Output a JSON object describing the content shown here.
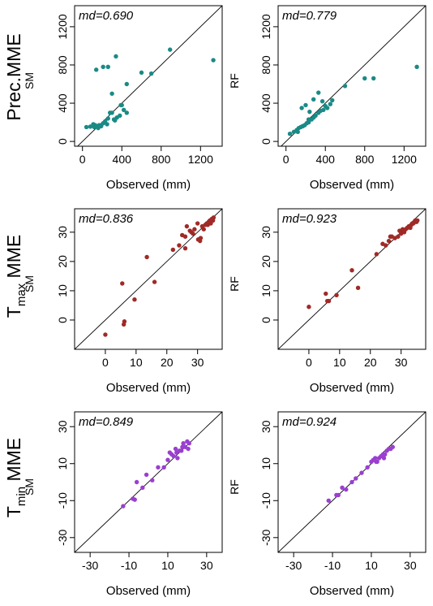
{
  "colors": {
    "row1": "#1a8a86",
    "row2": "#a02a26",
    "row3": "#9a3fd0",
    "frame": "#000000",
    "diagonal": "#000000"
  },
  "rows": [
    {
      "title_main": "Prec.MME",
      "title_sub": "",
      "model_label_left": "SM",
      "model_label_right": "RF"
    },
    {
      "title_main": "T",
      "title_sub": "max",
      "title_suffix": " MME",
      "model_label_left": "SM",
      "model_label_right": "RF"
    },
    {
      "title_main": "T",
      "title_sub": "min",
      "title_suffix": " MME",
      "model_label_left": "SM",
      "model_label_right": "RF"
    }
  ],
  "chart_data": [
    {
      "type": "scatter",
      "row": 0,
      "col": 0,
      "md_label": "md=0.690",
      "xlabel": "Observed (mm)",
      "ylabel": "SM",
      "xlim": [
        -80,
        1420
      ],
      "ylim": [
        -50,
        1420
      ],
      "xticks": [
        0,
        400,
        800,
        1200
      ],
      "yticks": [
        0,
        400,
        800,
        1200
      ],
      "x": [
        40,
        80,
        110,
        130,
        150,
        170,
        190,
        210,
        230,
        260,
        280,
        300,
        330,
        350,
        380,
        400,
        420,
        450,
        120,
        160,
        210,
        260,
        300,
        340,
        390,
        450,
        600,
        700,
        890,
        1330,
        140,
        180,
        250,
        320
      ],
      "y": [
        150,
        155,
        180,
        170,
        150,
        170,
        160,
        190,
        210,
        240,
        300,
        300,
        220,
        250,
        270,
        380,
        330,
        300,
        150,
        140,
        780,
        780,
        500,
        890,
        380,
        600,
        720,
        710,
        960,
        850,
        750,
        160,
        180,
        230
      ]
    },
    {
      "type": "scatter",
      "row": 0,
      "col": 1,
      "md_label": "md=0.779",
      "xlabel": "Observed (mm)",
      "ylabel": "RF",
      "xlim": [
        -80,
        1420
      ],
      "ylim": [
        -50,
        1420
      ],
      "xticks": [
        0,
        400,
        800,
        1200
      ],
      "yticks": [
        0,
        400,
        800,
        1200
      ],
      "x": [
        40,
        80,
        110,
        130,
        150,
        170,
        190,
        210,
        230,
        260,
        280,
        300,
        330,
        350,
        380,
        400,
        420,
        450,
        120,
        170,
        200,
        240,
        280,
        330,
        370,
        470,
        600,
        800,
        890,
        1330,
        160,
        230
      ],
      "y": [
        80,
        100,
        120,
        140,
        150,
        160,
        170,
        190,
        200,
        230,
        250,
        270,
        300,
        320,
        330,
        370,
        350,
        390,
        100,
        160,
        380,
        310,
        440,
        510,
        420,
        430,
        580,
        660,
        660,
        780,
        350,
        230
      ]
    },
    {
      "type": "scatter",
      "row": 1,
      "col": 0,
      "md_label": "md=0.836",
      "xlabel": "Observed (mm)",
      "ylabel": "SM",
      "xlim": [
        -10,
        38
      ],
      "ylim": [
        -10,
        38
      ],
      "xticks": [
        0,
        10,
        20,
        30
      ],
      "yticks": [
        0,
        10,
        20,
        30
      ],
      "x": [
        0,
        5.5,
        6,
        6.2,
        9.5,
        13.5,
        16,
        22,
        24,
        25,
        26,
        26.5,
        27.5,
        28,
        29,
        30,
        30.2,
        30.5,
        31,
        31.5,
        32,
        32.5,
        33,
        33.3,
        33.6,
        34,
        34.3,
        34.6,
        35,
        35.2,
        26,
        28.5,
        30.8
      ],
      "y": [
        -5,
        12.5,
        -1.5,
        -0.5,
        7,
        21.5,
        13,
        24,
        25.5,
        29,
        28.5,
        32,
        30.5,
        30,
        31,
        33,
        27.5,
        27.5,
        28,
        32,
        31,
        32.5,
        33,
        32.5,
        33.5,
        34,
        33,
        34.5,
        34,
        35,
        24.5,
        29.5,
        27
      ]
    },
    {
      "type": "scatter",
      "row": 1,
      "col": 1,
      "md_label": "md=0.923",
      "xlabel": "Observed (mm)",
      "ylabel": "RF",
      "xlim": [
        -10,
        38
      ],
      "ylim": [
        -10,
        38
      ],
      "xticks": [
        0,
        10,
        20,
        30
      ],
      "yticks": [
        0,
        10,
        20,
        30
      ],
      "x": [
        0,
        5.5,
        6,
        6.5,
        9,
        14,
        16,
        22,
        24,
        25,
        26,
        27,
        28,
        29,
        30,
        30.5,
        31,
        31.5,
        32,
        32.5,
        33,
        33.3,
        33.6,
        34,
        34.3,
        34.6,
        35,
        35.3,
        26.5,
        29.5
      ],
      "y": [
        4.5,
        9,
        6.5,
        6.5,
        8.5,
        17,
        11,
        22.5,
        26,
        25.5,
        27,
        28.5,
        28,
        28.5,
        29.5,
        31,
        30,
        31,
        31.5,
        32,
        31.5,
        32.5,
        33,
        33,
        33.5,
        34,
        33.5,
        34,
        28.5,
        30.5
      ]
    },
    {
      "type": "scatter",
      "row": 2,
      "col": 0,
      "md_label": "md=0.849",
      "xlabel": "Observed (mm)",
      "ylabel": "SM",
      "xlim": [
        -38,
        38
      ],
      "ylim": [
        -38,
        38
      ],
      "xticks": [
        -30,
        -10,
        10,
        30
      ],
      "yticks": [
        -30,
        -10,
        10,
        30
      ],
      "x": [
        -13,
        -8,
        -7,
        -6,
        -3,
        -1,
        2,
        5,
        8,
        10,
        11,
        12,
        13,
        14,
        15,
        16,
        17,
        18,
        19,
        20,
        20.5,
        21,
        14.5,
        17.5
      ],
      "y": [
        -13,
        -9,
        -9.5,
        0,
        -3,
        4,
        1,
        8,
        8,
        12,
        16,
        15,
        14,
        18,
        13,
        17,
        17,
        21,
        19,
        22,
        18,
        21,
        16,
        19
      ]
    },
    {
      "type": "scatter",
      "row": 2,
      "col": 1,
      "md_label": "md=0.924",
      "xlabel": "Observed (mm)",
      "ylabel": "RF",
      "xlim": [
        -38,
        38
      ],
      "ylim": [
        -38,
        38
      ],
      "xticks": [
        -30,
        -10,
        10,
        30
      ],
      "yticks": [
        -30,
        -10,
        10,
        30
      ],
      "x": [
        -12,
        -8,
        -7,
        -5,
        -3,
        0,
        2,
        5,
        8,
        10,
        11,
        12,
        13,
        14,
        15,
        16,
        17,
        18,
        19,
        20,
        21,
        12.5,
        16.5
      ],
      "y": [
        -10,
        -7,
        -7,
        -3,
        -4,
        0,
        2,
        5,
        8,
        11,
        12,
        13,
        11,
        13,
        14,
        15,
        15,
        17,
        18,
        18,
        19,
        11,
        13
      ]
    }
  ]
}
